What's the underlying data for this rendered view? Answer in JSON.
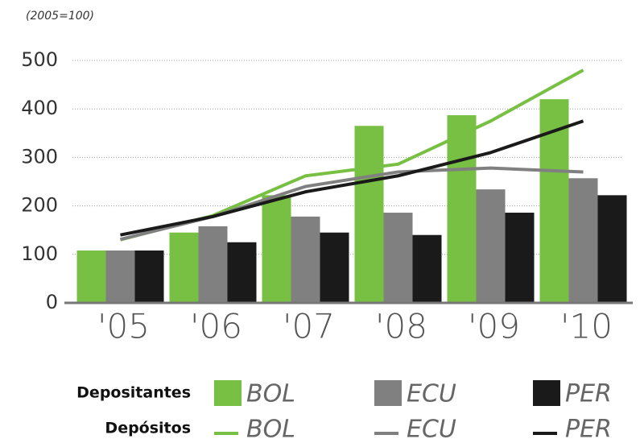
{
  "chart_data": {
    "type": "bar",
    "subtitle": "(2005=100)",
    "categories": [
      "'05",
      "'06",
      "'07",
      "'08",
      "'09",
      "'10"
    ],
    "ylim": [
      0,
      500
    ],
    "yticks": [
      0,
      100,
      200,
      300,
      400,
      500
    ],
    "grid": true,
    "groups": [
      {
        "label": "Depositantes",
        "type": "bar",
        "series": [
          {
            "name": "BOL",
            "color": "#77c043",
            "values": [
              108,
              145,
              222,
              365,
              387,
              420
            ]
          },
          {
            "name": "ECU",
            "color": "#808080",
            "values": [
              108,
              158,
              178,
              186,
              234,
              257
            ]
          },
          {
            "name": "PER",
            "color": "#1a1a1a",
            "values": [
              108,
              125,
              145,
              140,
              186,
              222
            ]
          }
        ]
      },
      {
        "label": "Depósitos",
        "type": "line",
        "series": [
          {
            "name": "BOL",
            "color": "#77c043",
            "values": [
              130,
              180,
              262,
              286,
              375,
              480
            ]
          },
          {
            "name": "ECU",
            "color": "#808080",
            "values": [
              131,
              178,
              240,
              270,
              278,
              270
            ]
          },
          {
            "name": "PER",
            "color": "#1a1a1a",
            "values": [
              140,
              178,
              229,
              262,
              310,
              375
            ]
          }
        ]
      }
    ]
  }
}
